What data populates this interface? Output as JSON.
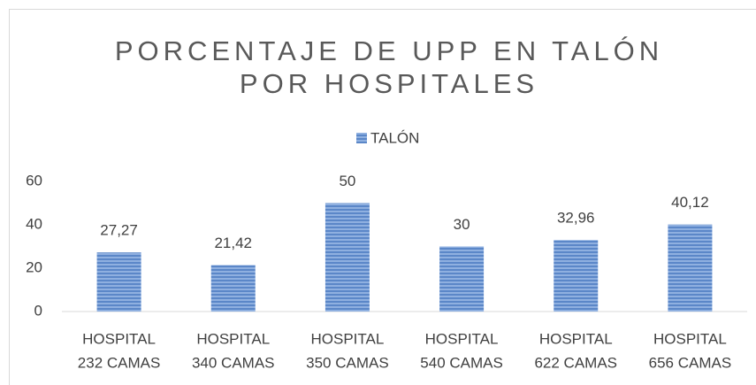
{
  "chart_data": {
    "type": "bar",
    "title": [
      "PORCENTAJE DE UPP EN TALÓN",
      "POR HOSPITALES"
    ],
    "categories": [
      [
        "HOSPITAL",
        "232 CAMAS"
      ],
      [
        "HOSPITAL",
        "340 CAMAS"
      ],
      [
        "HOSPITAL",
        "350 CAMAS"
      ],
      [
        "HOSPITAL",
        "540 CAMAS"
      ],
      [
        "HOSPITAL",
        "622 CAMAS"
      ],
      [
        "HOSPITAL",
        "656 CAMAS"
      ]
    ],
    "series": [
      {
        "name": "TALÓN",
        "color": "#5b87c8",
        "values": [
          27.27,
          21.42,
          50,
          30,
          32.96,
          40.12
        ],
        "value_labels": [
          "27,27",
          "21,42",
          "50",
          "30",
          "32,96",
          "40,12"
        ]
      }
    ],
    "ylim": [
      0,
      60
    ],
    "yticks": [
      0,
      20,
      40,
      60
    ],
    "grid": false,
    "legend": "top"
  }
}
